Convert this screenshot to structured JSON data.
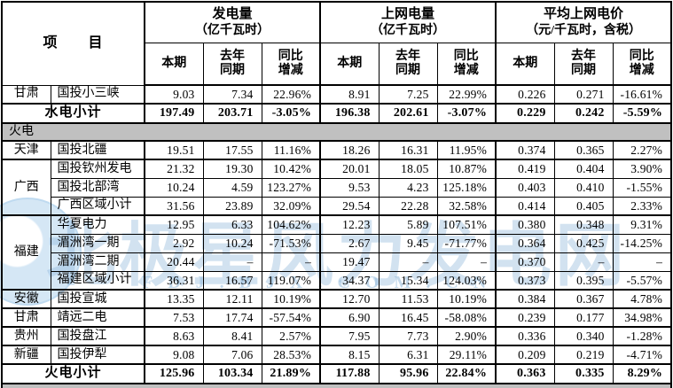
{
  "colors": {
    "section_band": "#c0c0c0",
    "watermark_blue": "rgba(138,180,216,0.38)",
    "watermark_blue_strong": "rgba(138,180,216,0.50)",
    "border": "#000000"
  },
  "watermark": {
    "text": "北极星风力发电网",
    "url": "FDJ.BJX.COM.CN"
  },
  "table": {
    "item_header": "项　　目",
    "groups": [
      {
        "title": "发电量",
        "unit": "（亿千瓦时）"
      },
      {
        "title": "上网电量",
        "unit": "（亿千瓦时）"
      },
      {
        "title": "平均上网电价",
        "unit": "（元/千瓦时，含税）"
      }
    ],
    "sub_columns": [
      "本期",
      "去年\n同期",
      "同比\n增减"
    ],
    "rows": [
      {
        "type": "data",
        "province": "甘肃",
        "province_rowspan": 1,
        "name": "国投小三峡",
        "values": [
          "9.03",
          "7.34",
          "22.96%",
          "8.91",
          "7.25",
          "22.99%",
          "0.226",
          "0.271",
          "-16.61%"
        ]
      },
      {
        "type": "subtotal",
        "name": "水电小计",
        "thick_top": true,
        "values": [
          "197.49",
          "203.71",
          "-3.05%",
          "196.38",
          "202.61",
          "-3.07%",
          "0.229",
          "0.242",
          "-5.59%"
        ]
      },
      {
        "type": "section",
        "name": "火电",
        "thick_top": true
      },
      {
        "type": "data",
        "province": "天津",
        "province_rowspan": 1,
        "name": "国投北疆",
        "thick_top": true,
        "values": [
          "19.51",
          "17.55",
          "11.16%",
          "18.26",
          "16.31",
          "11.95%",
          "0.374",
          "0.365",
          "2.27%"
        ]
      },
      {
        "type": "data",
        "province": "广西",
        "province_rowspan": 3,
        "name": "国投钦州发电",
        "thick_top": true,
        "values": [
          "21.32",
          "19.30",
          "10.42%",
          "20.01",
          "18.05",
          "10.87%",
          "0.419",
          "0.404",
          "3.90%"
        ]
      },
      {
        "type": "data",
        "name": "国投北部湾",
        "values": [
          "10.24",
          "4.59",
          "123.27%",
          "9.53",
          "4.23",
          "125.18%",
          "0.403",
          "0.410",
          "-1.55%"
        ]
      },
      {
        "type": "data",
        "name": "广西区域小计",
        "values": [
          "31.56",
          "23.89",
          "32.09%",
          "29.54",
          "22.28",
          "32.58%",
          "0.414",
          "0.405",
          "2.33%"
        ]
      },
      {
        "type": "data",
        "province": "福建",
        "province_rowspan": 4,
        "name": "华夏电力",
        "thick_top": true,
        "values": [
          "12.95",
          "6.33",
          "104.62%",
          "12.23",
          "5.89",
          "107.51%",
          "0.380",
          "0.348",
          "9.31%"
        ]
      },
      {
        "type": "data",
        "name": "湄洲湾一期",
        "values": [
          "2.92",
          "10.24",
          "-71.53%",
          "2.67",
          "9.45",
          "-71.77%",
          "0.364",
          "0.425",
          "-14.25%"
        ]
      },
      {
        "type": "data",
        "name": "湄洲湾二期",
        "values": [
          "20.44",
          "–",
          "–",
          "19.47",
          "–",
          "–",
          "0.370",
          "–",
          "–"
        ]
      },
      {
        "type": "data",
        "name": "福建区域小计",
        "values": [
          "36.31",
          "16.57",
          "119.07%",
          "34.37",
          "15.34",
          "124.03%",
          "0.373",
          "0.395",
          "-5.57%"
        ]
      },
      {
        "type": "data",
        "province": "安徽",
        "province_rowspan": 1,
        "name": "国投宣城",
        "thick_top": true,
        "values": [
          "13.35",
          "12.11",
          "10.19%",
          "12.70",
          "11.53",
          "10.19%",
          "0.384",
          "0.367",
          "4.78%"
        ]
      },
      {
        "type": "data",
        "province": "甘肃",
        "province_rowspan": 1,
        "name": "靖远二电",
        "thick_top": true,
        "values": [
          "7.53",
          "17.74",
          "-57.54%",
          "6.90",
          "16.45",
          "-58.08%",
          "0.239",
          "0.177",
          "34.98%"
        ]
      },
      {
        "type": "data",
        "province": "贵州",
        "province_rowspan": 1,
        "name": "国投盘江",
        "thick_top": true,
        "values": [
          "8.63",
          "8.41",
          "2.57%",
          "7.95",
          "7.73",
          "2.90%",
          "0.336",
          "0.340",
          "-1.28%"
        ]
      },
      {
        "type": "data",
        "province": "新疆",
        "province_rowspan": 1,
        "name": "国投伊犁",
        "thick_top": true,
        "values": [
          "9.08",
          "7.06",
          "28.53%",
          "8.15",
          "6.31",
          "29.11%",
          "0.209",
          "0.219",
          "-4.71%"
        ]
      },
      {
        "type": "subtotal",
        "name": "火电小计",
        "thick_top": true,
        "values": [
          "125.96",
          "103.34",
          "21.89%",
          "117.88",
          "95.96",
          "22.84%",
          "0.363",
          "0.335",
          "8.29%"
        ]
      },
      {
        "type": "section",
        "name": "",
        "thick_top": true,
        "partial": true
      }
    ]
  }
}
